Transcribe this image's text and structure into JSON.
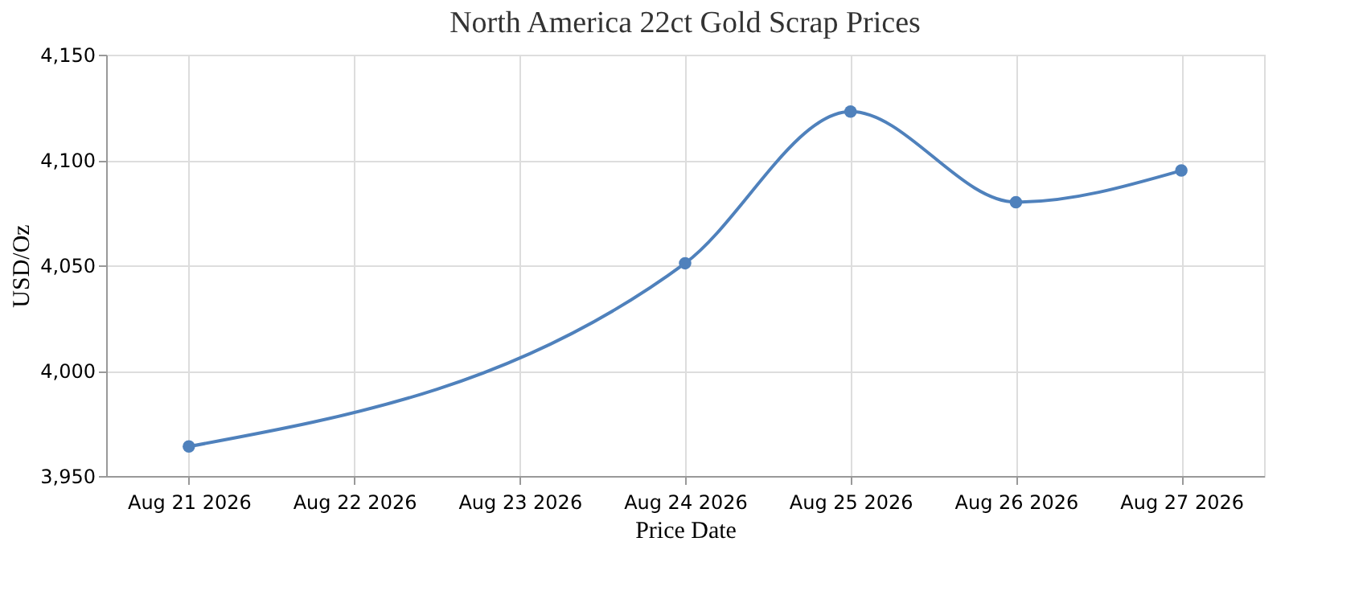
{
  "chart_data": {
    "type": "line",
    "title": "North America 22ct Gold Scrap  Prices",
    "xlabel": "Price Date",
    "ylabel": "USD/Oz",
    "x": [
      "2026-08-21",
      "2026-08-24",
      "2026-08-25",
      "2026-08-26",
      "2026-08-27"
    ],
    "series": [
      {
        "color": "#4f81bc",
        "values": [
          3964,
          4051,
          4123,
          4080,
          4095
        ]
      }
    ],
    "xlim": [
      "2026-08-20T12:00",
      "2026-08-27T12:00"
    ],
    "xticks": [
      {
        "value": "2026-08-21",
        "label": "Aug 21 2026"
      },
      {
        "value": "2026-08-22",
        "label": "Aug 22 2026"
      },
      {
        "value": "2026-08-23",
        "label": "Aug 23 2026"
      },
      {
        "value": "2026-08-24",
        "label": "Aug 24 2026"
      },
      {
        "value": "2026-08-25",
        "label": "Aug 25 2026"
      },
      {
        "value": "2026-08-26",
        "label": "Aug 26 2026"
      },
      {
        "value": "2026-08-27",
        "label": "Aug 27 2026"
      }
    ],
    "ylim": [
      3950,
      4150
    ],
    "yticks": [
      {
        "value": 3950,
        "label": "3,950"
      },
      {
        "value": 4000,
        "label": "4,000"
      },
      {
        "value": 4050,
        "label": "4,050"
      },
      {
        "value": 4100,
        "label": "4,100"
      },
      {
        "value": 4150,
        "label": "4,150"
      }
    ],
    "grid": true,
    "marker": "circle",
    "line_style": "solid"
  }
}
